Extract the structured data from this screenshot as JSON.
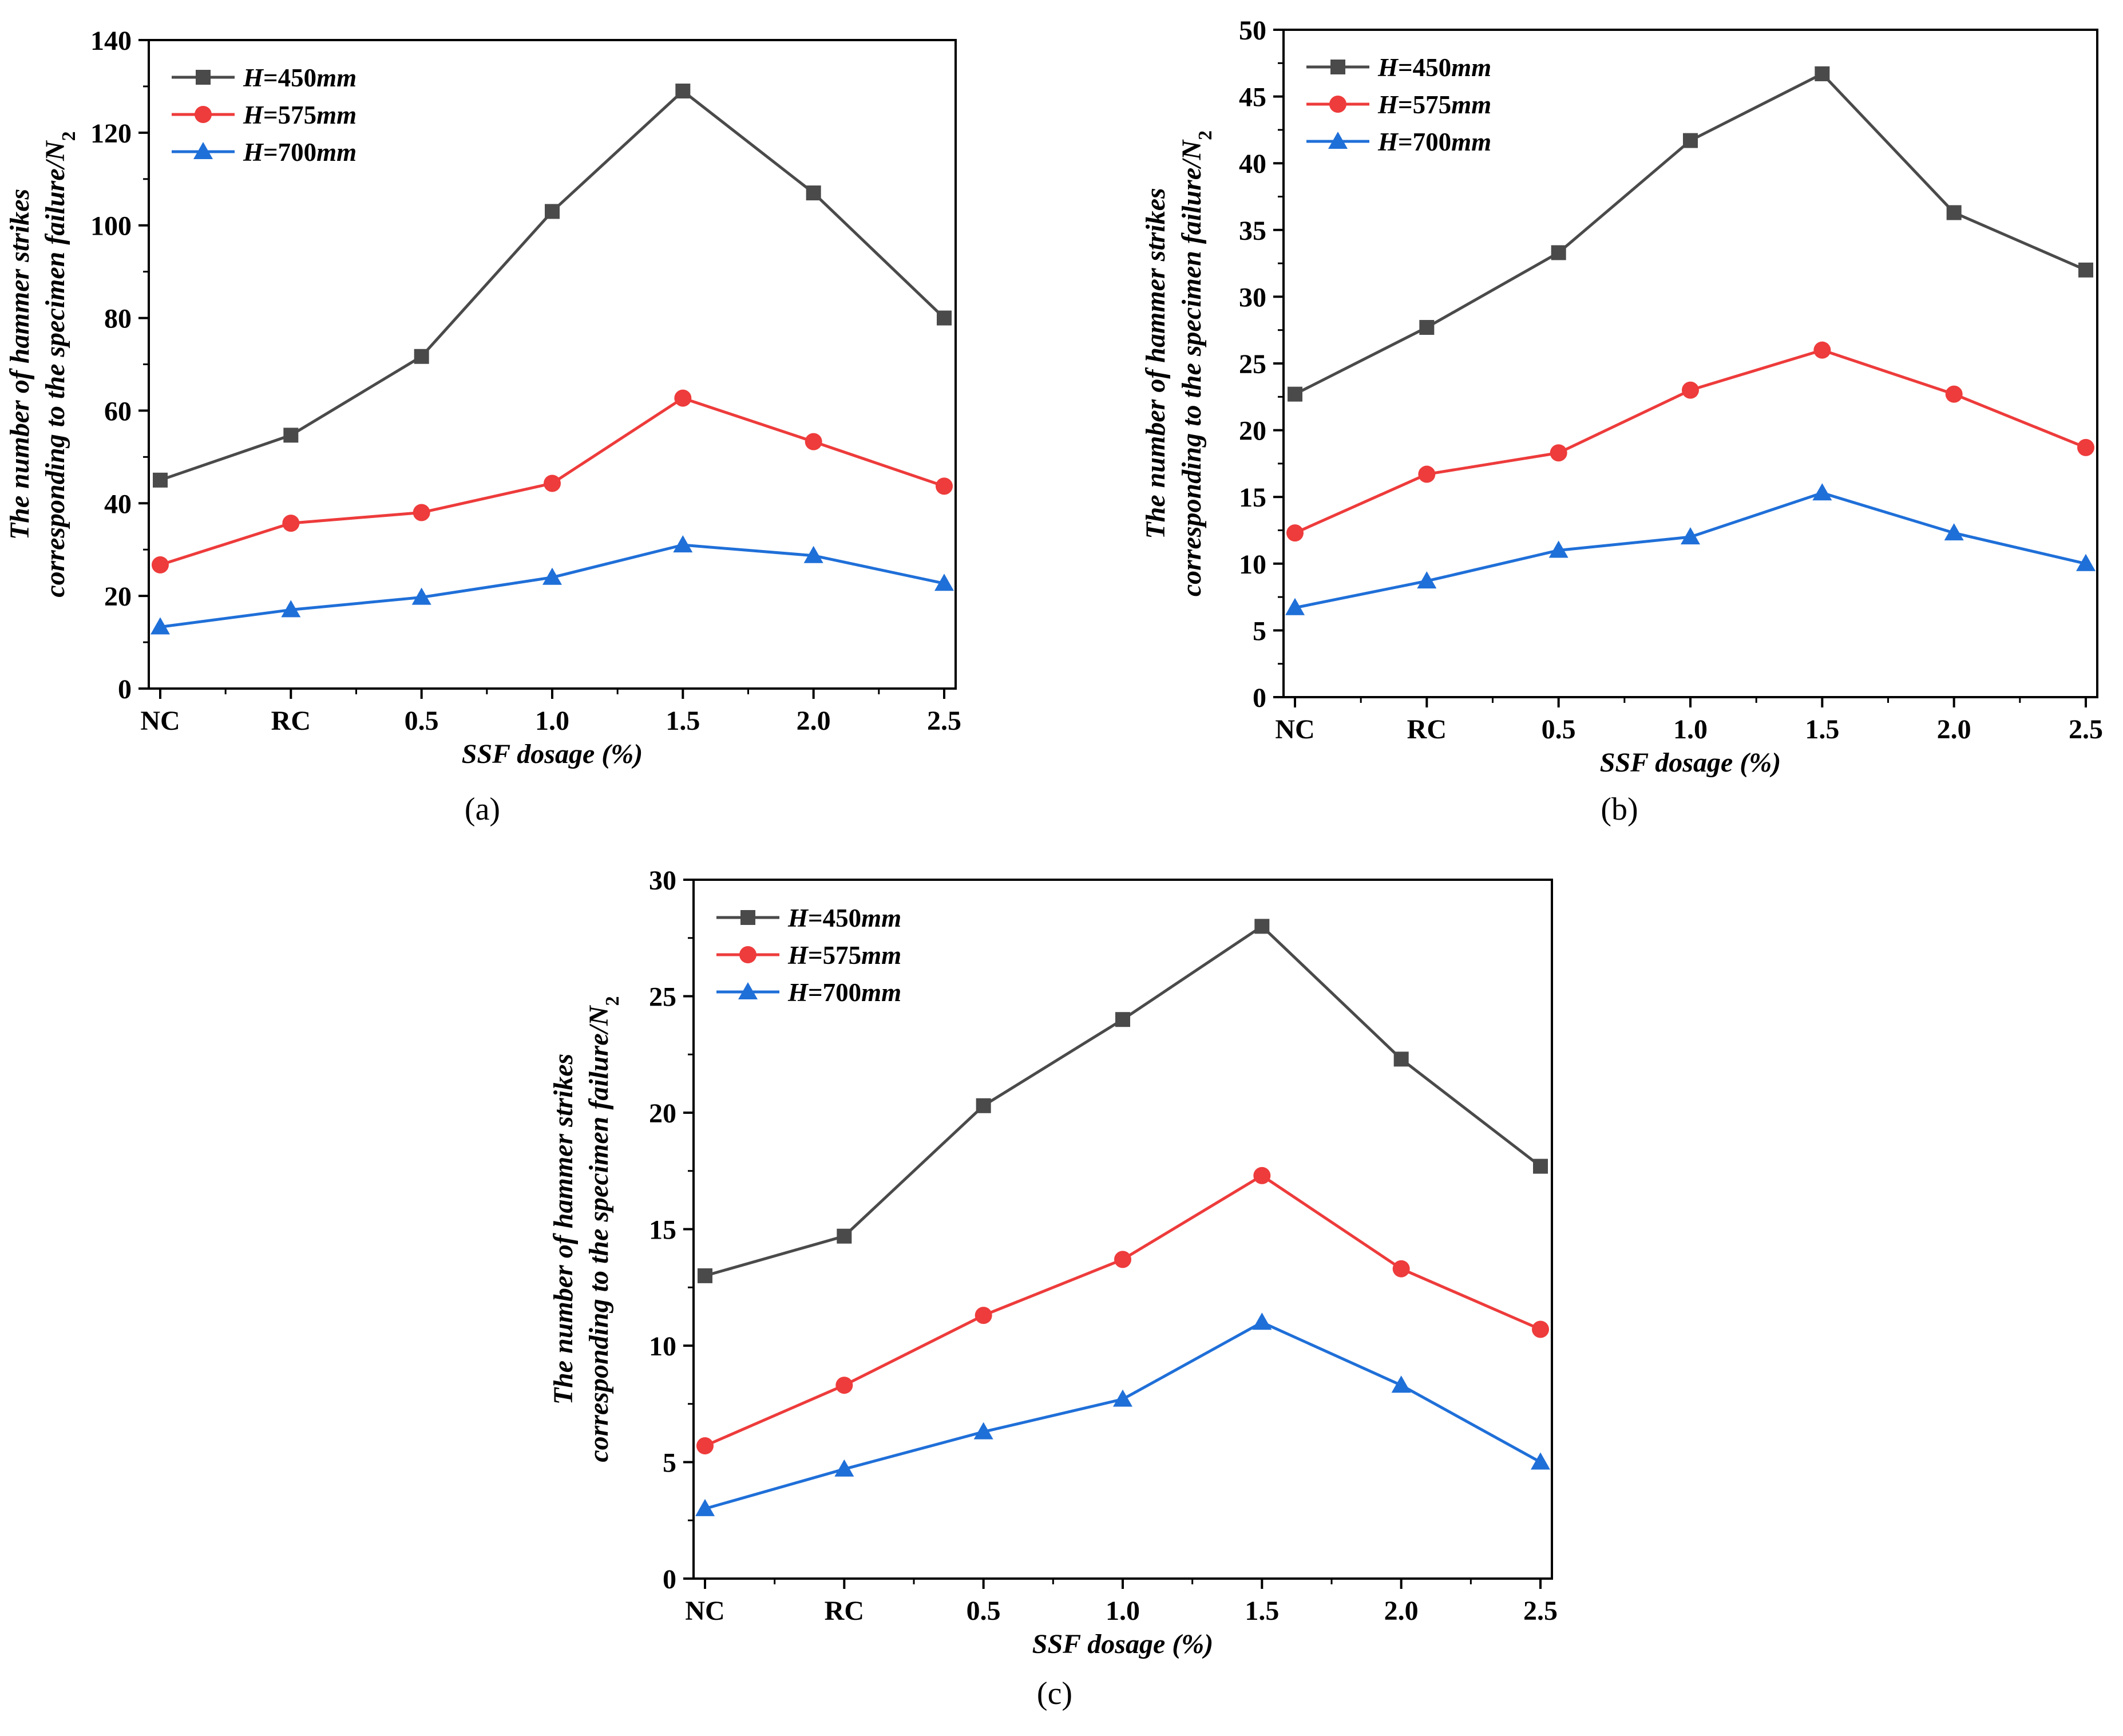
{
  "chart_data": [
    {
      "panel": "(a)",
      "type": "line",
      "categories": [
        "NC",
        "RC",
        "0.5",
        "1.0",
        "1.5",
        "2.0",
        "2.5"
      ],
      "xlabel": "SSF dosage (%)",
      "ylabel_line1": "The number of hammer strikes",
      "ylabel_line2": "corresponding to the specimen failure/N",
      "ylabel_subscript": "2",
      "ylim": [
        0,
        140
      ],
      "yticks": [
        0,
        20,
        40,
        60,
        80,
        100,
        120,
        140
      ],
      "legend_position": "top-left",
      "series": [
        {
          "name": "H=450mm",
          "name_var": "H",
          "name_rest": "=450",
          "name_unit": "mm",
          "color": "#4a4a4a",
          "marker": "square",
          "values": [
            45,
            54.7,
            71.7,
            103,
            129,
            107,
            80
          ]
        },
        {
          "name": "H=575mm",
          "name_var": "H",
          "name_rest": "=575",
          "name_unit": "mm",
          "color": "#ee3b3b",
          "marker": "circle",
          "values": [
            26.7,
            35.7,
            38,
            44.3,
            62.7,
            53.3,
            43.7
          ]
        },
        {
          "name": "H=700mm",
          "name_var": "H",
          "name_rest": "=700",
          "name_unit": "mm",
          "color": "#1f6fd8",
          "marker": "triangle",
          "values": [
            13.3,
            17,
            19.7,
            24,
            31,
            28.7,
            22.7
          ]
        }
      ]
    },
    {
      "panel": "(b)",
      "type": "line",
      "categories": [
        "NC",
        "RC",
        "0.5",
        "1.0",
        "1.5",
        "2.0",
        "2.5"
      ],
      "xlabel": "SSF dosage (%)",
      "ylabel_line1": "The number of hammer strikes",
      "ylabel_line2": "corresponding to the specimen failure/N",
      "ylabel_subscript": "2",
      "ylim": [
        0,
        50
      ],
      "yticks": [
        0,
        5,
        10,
        15,
        20,
        25,
        30,
        35,
        40,
        45,
        50
      ],
      "legend_position": "top-left",
      "series": [
        {
          "name": "H=450mm",
          "name_var": "H",
          "name_rest": "=450",
          "name_unit": "mm",
          "color": "#4a4a4a",
          "marker": "square",
          "values": [
            22.7,
            27.7,
            33.3,
            41.7,
            46.7,
            36.3,
            32
          ]
        },
        {
          "name": "H=575mm",
          "name_var": "H",
          "name_rest": "=575",
          "name_unit": "mm",
          "color": "#ee3b3b",
          "marker": "circle",
          "values": [
            12.3,
            16.7,
            18.3,
            23,
            26,
            22.7,
            18.7
          ]
        },
        {
          "name": "H=700mm",
          "name_var": "H",
          "name_rest": "=700",
          "name_unit": "mm",
          "color": "#1f6fd8",
          "marker": "triangle",
          "values": [
            6.7,
            8.7,
            11,
            12,
            15.3,
            12.3,
            10
          ]
        }
      ]
    },
    {
      "panel": "(c)",
      "type": "line",
      "categories": [
        "NC",
        "RC",
        "0.5",
        "1.0",
        "1.5",
        "2.0",
        "2.5"
      ],
      "xlabel": "SSF dosage (%)",
      "ylabel_line1": "The number of hammer strikes",
      "ylabel_line2": "corresponding to the specimen failure/N",
      "ylabel_subscript": "2",
      "ylim": [
        0,
        30
      ],
      "yticks": [
        0,
        5,
        10,
        15,
        20,
        25,
        30
      ],
      "legend_position": "top-left",
      "series": [
        {
          "name": "H=450mm",
          "name_var": "H",
          "name_rest": "=450",
          "name_unit": "mm",
          "color": "#4a4a4a",
          "marker": "square",
          "values": [
            13,
            14.7,
            20.3,
            24,
            28,
            22.3,
            17.7
          ]
        },
        {
          "name": "H=575mm",
          "name_var": "H",
          "name_rest": "=575",
          "name_unit": "mm",
          "color": "#ee3b3b",
          "marker": "circle",
          "values": [
            5.7,
            8.3,
            11.3,
            13.7,
            17.3,
            13.3,
            10.7
          ]
        },
        {
          "name": "H=700mm",
          "name_var": "H",
          "name_rest": "=700",
          "name_unit": "mm",
          "color": "#1f6fd8",
          "marker": "triangle",
          "values": [
            3,
            4.7,
            6.3,
            7.7,
            11,
            8.3,
            5
          ]
        }
      ]
    }
  ]
}
